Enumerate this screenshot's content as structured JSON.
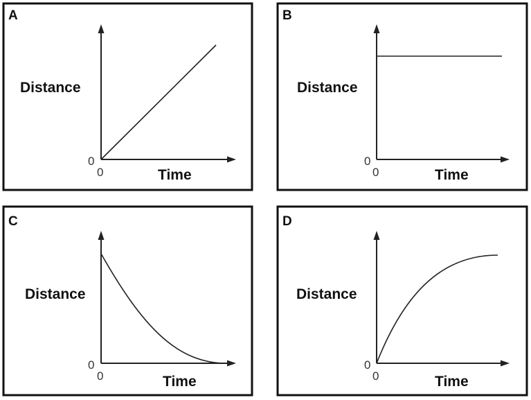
{
  "chart_data": [
    {
      "type": "line",
      "panel": "A",
      "xlabel": "Time",
      "ylabel": "Distance",
      "x_origin_label": "0",
      "y_origin_label": "0",
      "x": [
        0,
        1
      ],
      "series": [
        {
          "values": [
            0,
            1
          ]
        }
      ],
      "shape": "linear-increase"
    },
    {
      "type": "line",
      "panel": "B",
      "xlabel": "Time",
      "ylabel": "Distance",
      "x_origin_label": "0",
      "y_origin_label": "0",
      "x": [
        0,
        1
      ],
      "series": [
        {
          "values": [
            0.85,
            0.85
          ]
        }
      ],
      "shape": "constant"
    },
    {
      "type": "line",
      "panel": "C",
      "xlabel": "Time",
      "ylabel": "Distance",
      "x_origin_label": "0",
      "y_origin_label": "0",
      "x": [
        0,
        0.25,
        0.5,
        0.75,
        1
      ],
      "series": [
        {
          "values": [
            0.9,
            0.5,
            0.22,
            0.06,
            0
          ]
        }
      ],
      "shape": "decreasing-concave-up"
    },
    {
      "type": "line",
      "panel": "D",
      "xlabel": "Time",
      "ylabel": "Distance",
      "x_origin_label": "0",
      "y_origin_label": "0",
      "x": [
        0,
        0.25,
        0.5,
        0.75,
        1
      ],
      "series": [
        {
          "values": [
            0,
            0.45,
            0.71,
            0.85,
            0.89
          ]
        }
      ],
      "shape": "increasing-concave-down"
    }
  ],
  "style": {
    "frame_color": "#111111",
    "axis_color": "#222222",
    "line_color": "#222222",
    "background": "#ffffff"
  }
}
